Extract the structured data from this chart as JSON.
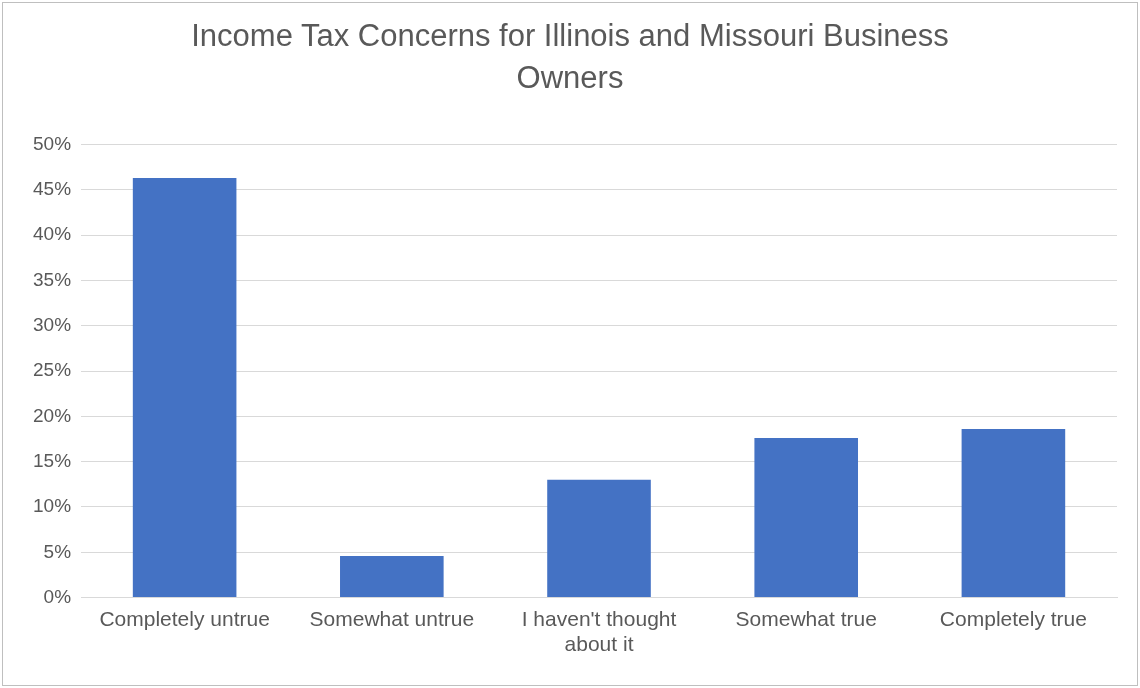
{
  "chart_data": {
    "type": "bar",
    "title": "Income Tax Concerns for Illinois and Missouri Business Owners",
    "categories": [
      "Completely untrue",
      "Somewhat untrue",
      "I haven't thought about it",
      "Somewhat true",
      "Completely true"
    ],
    "values": [
      46.3,
      4.6,
      13.0,
      17.6,
      18.6
    ],
    "color": "#4472c4",
    "ylim": [
      0,
      50
    ],
    "yticks": [
      {
        "value": 0,
        "label": "0%"
      },
      {
        "value": 5,
        "label": "5%"
      },
      {
        "value": 10,
        "label": "10%"
      },
      {
        "value": 15,
        "label": "15%"
      },
      {
        "value": 20,
        "label": "20%"
      },
      {
        "value": 25,
        "label": "25%"
      },
      {
        "value": 30,
        "label": "30%"
      },
      {
        "value": 35,
        "label": "35%"
      },
      {
        "value": 40,
        "label": "40%"
      },
      {
        "value": 45,
        "label": "45%"
      },
      {
        "value": 50,
        "label": "50%"
      }
    ],
    "grid": "y",
    "legend": false
  }
}
